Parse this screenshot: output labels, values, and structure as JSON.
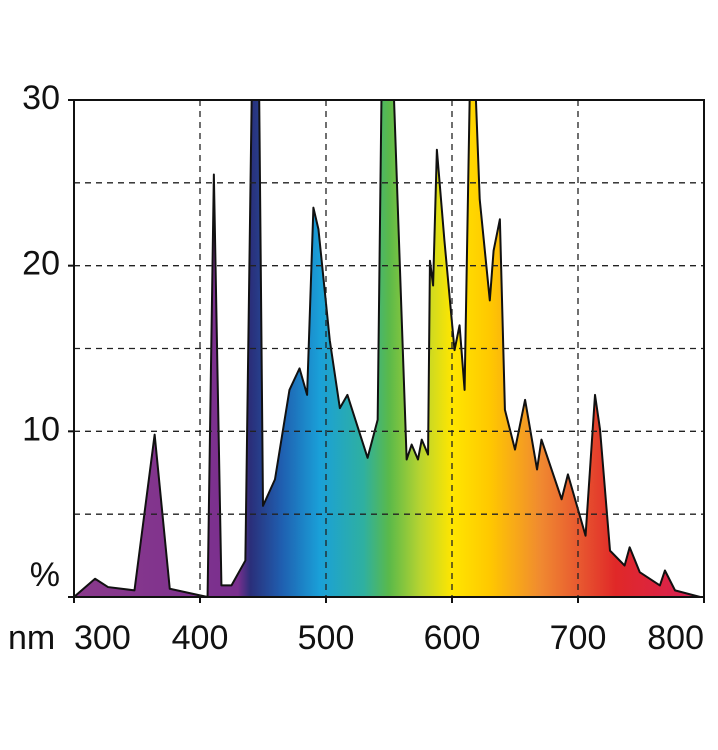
{
  "chart_data": {
    "type": "area",
    "x_label": "nm",
    "x": [
      300,
      316.7,
      327,
      348,
      364,
      376,
      400,
      406,
      411,
      417,
      425,
      436,
      441,
      447,
      450,
      459.5,
      471,
      479,
      485,
      490,
      494,
      503,
      511,
      517,
      533,
      541,
      544,
      554,
      564,
      568,
      573,
      576,
      581,
      582.5,
      585,
      588,
      594,
      602,
      606,
      610,
      614,
      619,
      622,
      630,
      633,
      638,
      642,
      650,
      658,
      667.5,
      671,
      687,
      692,
      706,
      713.5,
      717.5,
      725.4,
      737,
      741,
      749,
      765,
      769,
      777,
      797,
      800
    ],
    "values": [
      0,
      1.1,
      0.6,
      0.4,
      9.8,
      0.5,
      0.1,
      0,
      25.5,
      0.7,
      0.7,
      2.2,
      30,
      30,
      5.5,
      7.1,
      12.5,
      13.8,
      12.2,
      23.5,
      22.2,
      15.5,
      11.4,
      12.2,
      8.4,
      10.7,
      30,
      30,
      8.3,
      9.2,
      8.3,
      9.5,
      8.6,
      20.3,
      18.8,
      27,
      21.5,
      14.9,
      16.4,
      12.5,
      30,
      30,
      24,
      17.9,
      20.9,
      22.8,
      11.3,
      8.9,
      11.9,
      7.7,
      9.5,
      5.9,
      7.4,
      3.7,
      12.2,
      10.1,
      2.8,
      1.9,
      3.0,
      1.5,
      0.7,
      1.6,
      0.4,
      0,
      0
    ],
    "xlim": [
      300,
      800
    ],
    "ylim": [
      0,
      30
    ],
    "xticks": [
      300,
      400,
      500,
      600,
      700,
      800
    ],
    "yticks": [
      {
        "value": 0,
        "label": "%"
      },
      10,
      20,
      30
    ],
    "xgrid": [
      400,
      500,
      600,
      700
    ],
    "ygrid": [
      5,
      10,
      15,
      20,
      25
    ],
    "line_color": "#111111"
  }
}
